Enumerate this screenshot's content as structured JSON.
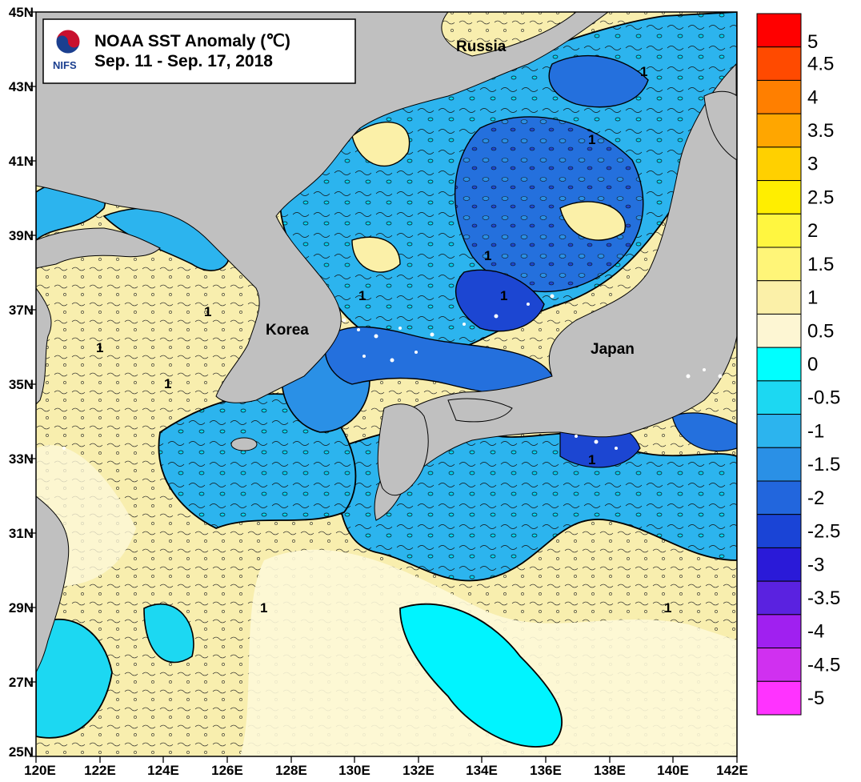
{
  "title": {
    "line1": "NOAA SST Anomaly (℃)",
    "line2": "Sep. 11 - Sep. 17, 2018",
    "logo_text": "NIFS"
  },
  "places": {
    "russia": "Russia",
    "korea": "Korea",
    "japan": "Japan"
  },
  "axes": {
    "x_ticks": [
      "120E",
      "122E",
      "124E",
      "126E",
      "128E",
      "130E",
      "132E",
      "134E",
      "136E",
      "138E",
      "140E",
      "142E"
    ],
    "y_ticks": [
      "45N",
      "43N",
      "41N",
      "39N",
      "37N",
      "35N",
      "33N",
      "31N",
      "29N",
      "27N",
      "25N"
    ]
  },
  "colorbar": {
    "labels": [
      "5",
      "4.5",
      "4",
      "3.5",
      "3",
      "2.5",
      "2",
      "1.5",
      "1",
      "0.5",
      "0",
      "-0.5",
      "-1",
      "-1.5",
      "-2",
      "-2.5",
      "-3",
      "-3.5",
      "-4",
      "-4.5",
      "-5"
    ],
    "colors": [
      "#ff0000",
      "#ff4a00",
      "#ff7f00",
      "#ffa600",
      "#ffd000",
      "#ffee00",
      "#fff640",
      "#fff578",
      "#fbf0a8",
      "#fdf6d3",
      "#00ffff",
      "#1cd8f2",
      "#2cb4ee",
      "#2a90e6",
      "#2266dd",
      "#1a44d6",
      "#2a1ad8",
      "#5a22e0",
      "#a020f0",
      "#d030f0",
      "#ff33ff"
    ]
  },
  "contour_labels": [
    "1",
    "1",
    "1",
    "1",
    "1",
    "1",
    "1",
    "1",
    "1",
    "1",
    "1"
  ],
  "colors": {
    "land": "#c0c0c0",
    "warm": "#f8eeae",
    "neutral": "#fdf8d8",
    "cool": "#2fc8ec",
    "cold": "#2470dd",
    "colder": "#1c46d2",
    "cyan": "#00ffff"
  }
}
